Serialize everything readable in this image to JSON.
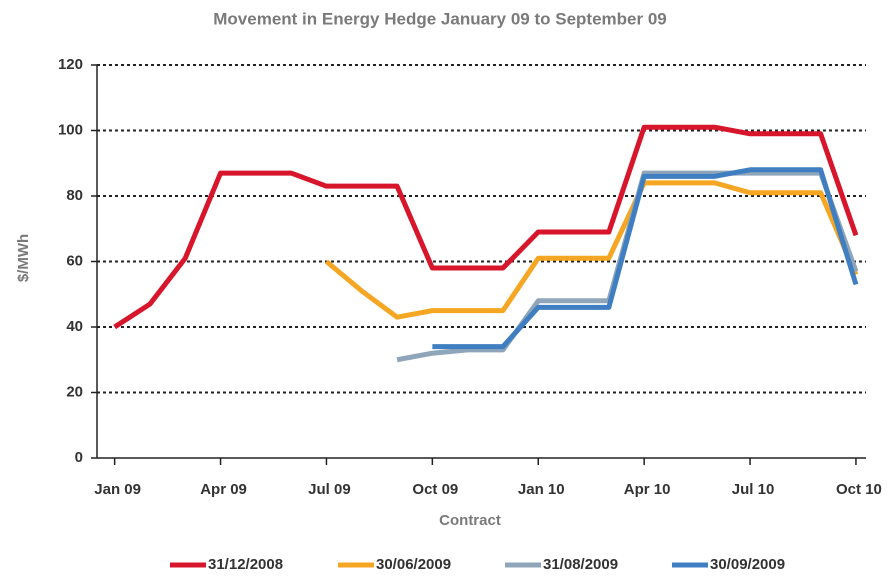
{
  "chart_data": {
    "type": "line",
    "title": "Movement in Energy Hedge January 09 to September 09",
    "x_label": "Contract",
    "y_label": "$/MWh",
    "categories": [
      "Jan 09",
      null,
      null,
      "Apr 09",
      null,
      null,
      "Jul 09",
      null,
      null,
      "Oct 09",
      null,
      null,
      "Jan 10",
      null,
      null,
      "Apr 10",
      null,
      null,
      "Jul 10",
      null,
      null,
      "Oct 10"
    ],
    "series": [
      {
        "name": "31/12/2008",
        "color": "#d7152b",
        "values": [
          40,
          47,
          61,
          87,
          87,
          87,
          83,
          83,
          83,
          58,
          58,
          58,
          69,
          69,
          69,
          101,
          101,
          101,
          99,
          99,
          99,
          68
        ]
      },
      {
        "name": "30/06/2009",
        "color": "#f5a623",
        "values": [
          null,
          null,
          null,
          null,
          null,
          null,
          60,
          51,
          43,
          45,
          45,
          45,
          61,
          61,
          61,
          84,
          84,
          84,
          81,
          81,
          81,
          56
        ]
      },
      {
        "name": "31/08/2009",
        "color": "#8fa5b9",
        "values": [
          null,
          null,
          null,
          null,
          null,
          null,
          null,
          null,
          30,
          32,
          33,
          33,
          48,
          48,
          48,
          87,
          87,
          87,
          87,
          87,
          87,
          57
        ]
      },
      {
        "name": "30/09/2009",
        "color": "#3f7fc1",
        "values": [
          null,
          null,
          null,
          null,
          null,
          null,
          null,
          null,
          null,
          34,
          34,
          34,
          46,
          46,
          46,
          86,
          86,
          86,
          88,
          88,
          88,
          53
        ]
      }
    ],
    "ylim": [
      0,
      120
    ],
    "yticks": [
      0,
      20,
      40,
      60,
      80,
      100,
      120
    ],
    "grid": true,
    "legend": "bottom"
  }
}
